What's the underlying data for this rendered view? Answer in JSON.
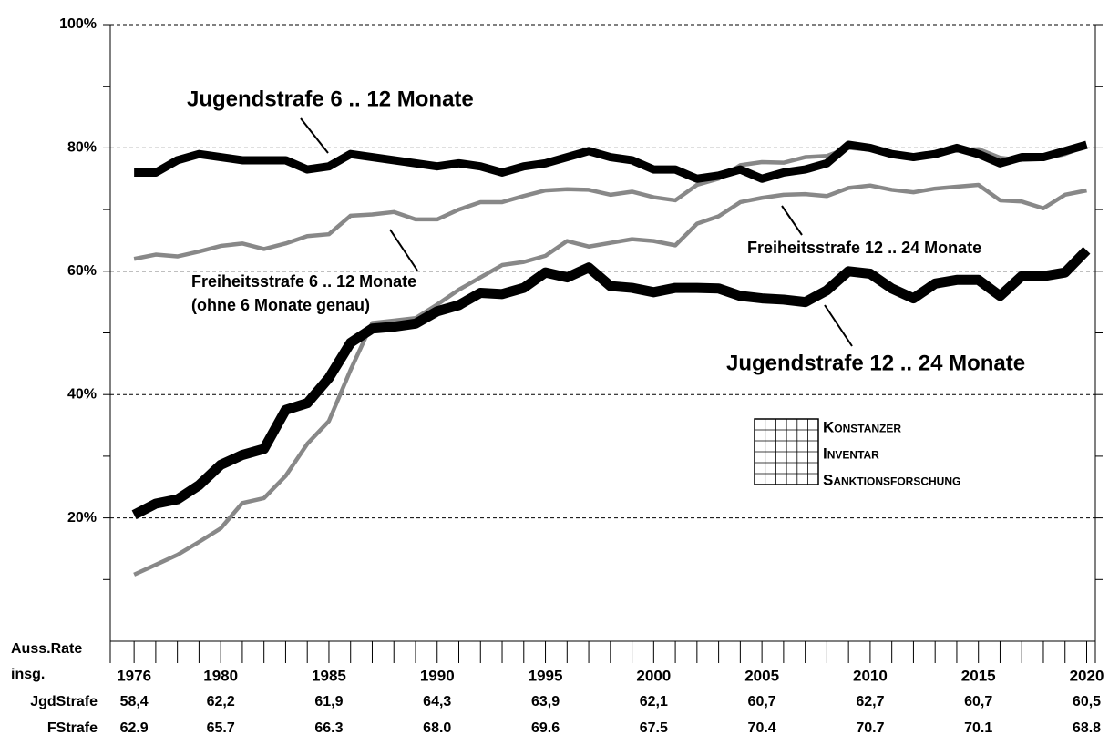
{
  "chart_data": {
    "type": "line",
    "x": [
      1976,
      1977,
      1978,
      1979,
      1980,
      1981,
      1982,
      1983,
      1984,
      1985,
      1986,
      1987,
      1988,
      1989,
      1990,
      1991,
      1992,
      1993,
      1994,
      1995,
      1996,
      1997,
      1998,
      1999,
      2000,
      2001,
      2002,
      2003,
      2004,
      2005,
      2006,
      2007,
      2008,
      2009,
      2010,
      2011,
      2012,
      2013,
      2014,
      2015,
      2016,
      2017,
      2018,
      2019,
      2020
    ],
    "xlim": [
      1974.9,
      2020.4
    ],
    "xticks": [
      1976,
      1980,
      1985,
      1990,
      1995,
      2000,
      2005,
      2010,
      2015,
      2020
    ],
    "ylim": [
      0,
      100
    ],
    "yticks": [
      {
        "value": 20,
        "label": "20%"
      },
      {
        "value": 40,
        "label": "40%"
      },
      {
        "value": 60,
        "label": "60%"
      },
      {
        "value": 80,
        "label": "80%"
      },
      {
        "value": 100,
        "label": "100%"
      }
    ],
    "yminor_ticks": [
      10,
      30,
      50,
      70,
      90
    ],
    "grid": true,
    "series": [
      {
        "name": "Jugendstrafe 6 .. 12 Monate",
        "color": "#000000",
        "width": 9,
        "values": [
          76,
          76,
          78,
          79,
          78.5,
          78,
          78,
          78,
          76.5,
          77,
          79,
          78.5,
          78,
          77.5,
          77,
          77.5,
          77,
          76,
          77,
          77.5,
          78.5,
          79.5,
          78.5,
          78,
          76.5,
          76.5,
          75,
          75.5,
          76.5,
          75,
          76,
          76.5,
          77.5,
          80.5,
          80,
          79,
          78.5,
          79,
          80,
          79,
          77.5,
          78.5,
          78.5,
          79.5,
          80.5
        ]
      },
      {
        "name": "Freiheitsstrafe 6 .. 12 Monate",
        "color": "#888888",
        "width": 4.5,
        "values": [
          62,
          62.7,
          62.4,
          63.2,
          64.1,
          64.5,
          63.6,
          64.5,
          65.7,
          66,
          69,
          69.2,
          69.6,
          68.4,
          68.4,
          70,
          71.2,
          71.2,
          72.2,
          73.1,
          73.3,
          73.2,
          72.4,
          72.9,
          72,
          71.5,
          74,
          75,
          77.2,
          77.7,
          77.6,
          78.5,
          78.7,
          80,
          79.7,
          79,
          78.5,
          78.8,
          79.6,
          79.8,
          78.4,
          78,
          78.2,
          79,
          80.4
        ]
      },
      {
        "name": "Jugendstrafe 12 .. 24 Monate",
        "color": "#000000",
        "width": 11,
        "values": [
          20.5,
          22.3,
          23,
          25.3,
          28.6,
          30.2,
          31.2,
          37.5,
          38.6,
          42.7,
          48.4,
          50.7,
          51,
          51.5,
          53.5,
          54.5,
          56.5,
          56.3,
          57.3,
          59.8,
          59,
          60.6,
          57.6,
          57.3,
          56.6,
          57.3,
          57.3,
          57.2,
          56,
          55.6,
          55.4,
          55,
          56.9,
          60,
          59.6,
          57.2,
          55.6,
          58,
          58.6,
          58.6,
          56,
          59.2,
          59.2,
          59.8,
          63.4
        ]
      },
      {
        "name": "Freiheitsstrafe 12 .. 24 Monate",
        "color": "#888888",
        "width": 4.5,
        "values": [
          10.8,
          12.4,
          14,
          16.1,
          18.3,
          22.4,
          23.2,
          26.8,
          32,
          35.7,
          44,
          51.6,
          52,
          52.4,
          54.6,
          57,
          59,
          61,
          61.5,
          62.5,
          64.9,
          64,
          64.6,
          65.2,
          64.9,
          64.2,
          67.7,
          68.9,
          71.2,
          71.9,
          72.4,
          72.5,
          72.2,
          73.5,
          73.9,
          73.2,
          72.8,
          73.4,
          73.7,
          74,
          71.5,
          71.3,
          70.2,
          72.4,
          73.1
        ]
      }
    ],
    "annotations": [
      "Jugendstrafe 6 .. 12 Monate",
      "Freiheitsstrafe 6 .. 12 Monate",
      "(ohne 6 Monate genau)",
      "Freiheitsstrafe 12 .. 24 Monate",
      "Jugendstrafe 12 .. 24 Monate"
    ],
    "logo": [
      "Konstanzer",
      "Inventar",
      "Sanktionsforschung"
    ]
  },
  "table": {
    "header": [
      "Auss.Rate",
      "insg."
    ],
    "rows": [
      {
        "label": "JgdStrafe",
        "values": [
          "58,4",
          "62,2",
          "61,9",
          "64,3",
          "63,9",
          "62,1",
          "60,7",
          "62,7",
          "60,7",
          "60,5"
        ]
      },
      {
        "label": "FStrafe",
        "values": [
          "62.9",
          "65.7",
          "66.3",
          "68.0",
          "69.6",
          "67.5",
          "70.4",
          "70.7",
          "70.1",
          "68.8"
        ]
      }
    ]
  }
}
